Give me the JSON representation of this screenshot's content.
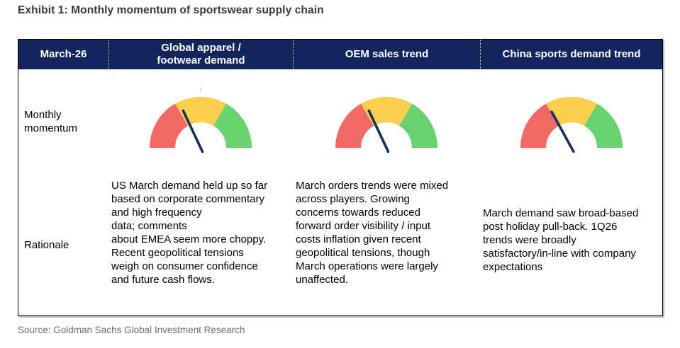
{
  "page": {
    "title": "Exhibit 1: Monthly momentum of sportswear supply chain",
    "source": "Source: Goldman Sachs Global Investment Research"
  },
  "table": {
    "header": {
      "period": "March-26",
      "columns": [
        "Global apparel /\nfootwear demand",
        "OEM sales trend",
        "China sports demand trend"
      ]
    },
    "row_labels": {
      "momentum": "Monthly\nmomentum",
      "rationale": "Rationale"
    },
    "rationales": [
      "US March demand held up so far\nbased on corporate commentary\nand high frequency\ndata; comments\nabout EMEA seem more choppy.\nRecent geopolitical tensions\nweigh on consumer confidence\nand future cash flows.",
      "March orders trends were mixed\nacross players. Growing\nconcerns towards reduced\nforward order visibility / input\ncosts inflation given recent\ngeopolitical tensions, though\nMarch operations were largely\nunaffected.",
      "March demand saw broad-based\npost holiday pull-back. 1Q26\ntrends were broadly\nsatisfactory/in-line with company\nexpectations"
    ]
  },
  "chart_data": {
    "type": "gauge",
    "title": "Monthly momentum of sportswear supply chain",
    "scale": [
      0,
      100
    ],
    "segments": [
      {
        "label": "negative",
        "color": "#EE6A63",
        "from": 0,
        "to": 33.3
      },
      {
        "label": "neutral",
        "color": "#FBCF4B",
        "from": 33.3,
        "to": 66.7
      },
      {
        "label": "positive",
        "color": "#67D26F",
        "from": 66.7,
        "to": 100
      }
    ],
    "gauges": [
      {
        "column": "Global apparel / footwear demand",
        "needle_pct": 36,
        "needle_color": "#16305F",
        "top_tick": true
      },
      {
        "column": "OEM sales trend",
        "needle_pct": 36,
        "needle_color": "#16305F",
        "top_tick": false
      },
      {
        "column": "China sports demand trend",
        "needle_pct": 34,
        "needle_color": "#16305F",
        "top_tick": false
      }
    ]
  },
  "colors": {
    "header_bg": "#14245c",
    "header_text": "#ffffff",
    "title_text": "#3a3a3a",
    "source_text": "#6e6e6e",
    "table_border": "#000000"
  }
}
